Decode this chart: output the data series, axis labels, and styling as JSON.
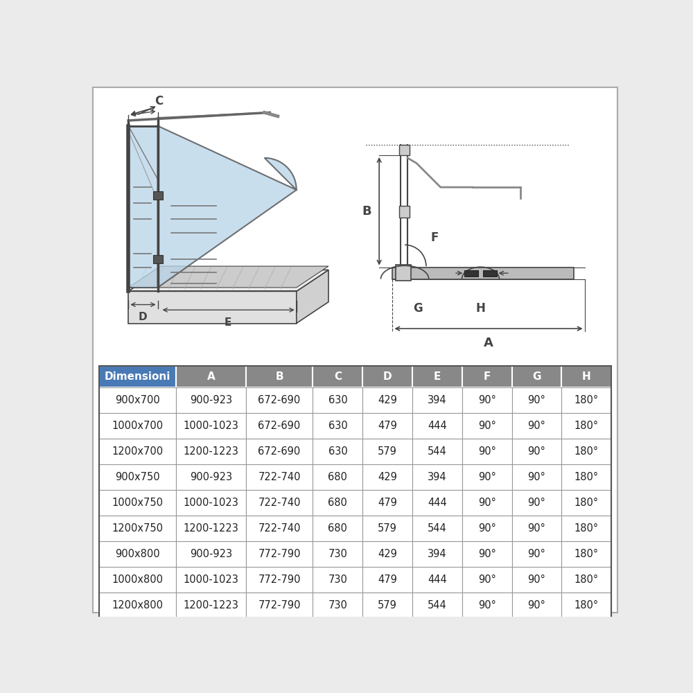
{
  "bg_color": "#ebebeb",
  "inner_bg": "#ffffff",
  "table_header_bg": "#4a7ab5",
  "table_header_gray": "#888888",
  "columns": [
    "Dimensioni",
    "A",
    "B",
    "C",
    "D",
    "E",
    "F",
    "G",
    "H"
  ],
  "rows": [
    [
      "900x700",
      "900-923",
      "672-690",
      "630",
      "429",
      "394",
      "90°",
      "90°",
      "180°"
    ],
    [
      "1000x700",
      "1000-1023",
      "672-690",
      "630",
      "479",
      "444",
      "90°",
      "90°",
      "180°"
    ],
    [
      "1200x700",
      "1200-1223",
      "672-690",
      "630",
      "579",
      "544",
      "90°",
      "90°",
      "180°"
    ],
    [
      "900x750",
      "900-923",
      "722-740",
      "680",
      "429",
      "394",
      "90°",
      "90°",
      "180°"
    ],
    [
      "1000x750",
      "1000-1023",
      "722-740",
      "680",
      "479",
      "444",
      "90°",
      "90°",
      "180°"
    ],
    [
      "1200x750",
      "1200-1223",
      "722-740",
      "680",
      "579",
      "544",
      "90°",
      "90°",
      "180°"
    ],
    [
      "900x800",
      "900-923",
      "772-790",
      "730",
      "429",
      "394",
      "90°",
      "90°",
      "180°"
    ],
    [
      "1000x800",
      "1000-1023",
      "772-790",
      "730",
      "479",
      "444",
      "90°",
      "90°",
      "180°"
    ],
    [
      "1200x800",
      "1200-1223",
      "772-790",
      "730",
      "579",
      "544",
      "90°",
      "90°",
      "180°"
    ]
  ],
  "glass_color": "#b8d4e8",
  "lc": "#444444",
  "lc_light": "#777777"
}
